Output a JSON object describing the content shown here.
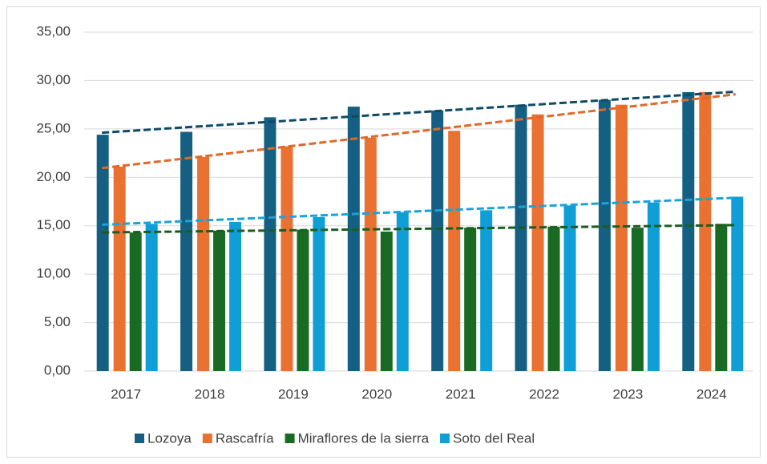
{
  "chart_data": {
    "type": "bar",
    "categories": [
      "2017",
      "2018",
      "2019",
      "2020",
      "2021",
      "2022",
      "2023",
      "2024"
    ],
    "series": [
      {
        "name": "Lozoya",
        "color": "#156082",
        "trend_color": "#0e4a66",
        "values": [
          24.4,
          24.7,
          26.2,
          27.3,
          26.9,
          27.5,
          28.0,
          28.8
        ]
      },
      {
        "name": "Rascafría",
        "color": "#e97132",
        "trend_color": "#e0692a",
        "values": [
          21.1,
          22.1,
          23.2,
          24.1,
          24.8,
          26.5,
          27.5,
          28.8
        ]
      },
      {
        "name": "Miraflores de la sierra",
        "color": "#196b24",
        "trend_color": "#1a5e1f",
        "values": [
          14.3,
          14.5,
          14.6,
          14.4,
          14.8,
          14.9,
          14.8,
          15.2
        ]
      },
      {
        "name": "Soto del Real",
        "color": "#0f9ed5",
        "trend_color": "#1aa3d9",
        "values": [
          15.2,
          15.4,
          15.9,
          16.4,
          16.6,
          17.1,
          17.4,
          18.0
        ]
      }
    ],
    "ylim": [
      0,
      35
    ],
    "yticks": [
      {
        "value": 0,
        "label": "0,00"
      },
      {
        "value": 5,
        "label": "5,00"
      },
      {
        "value": 10,
        "label": "10,00"
      },
      {
        "value": 15,
        "label": "15,00"
      },
      {
        "value": 20,
        "label": "20,00"
      },
      {
        "value": 25,
        "label": "25,00"
      },
      {
        "value": 30,
        "label": "30,00"
      },
      {
        "value": 35,
        "label": "35,00"
      }
    ],
    "grid": true,
    "trendline": "linear",
    "legend": "bottom"
  }
}
